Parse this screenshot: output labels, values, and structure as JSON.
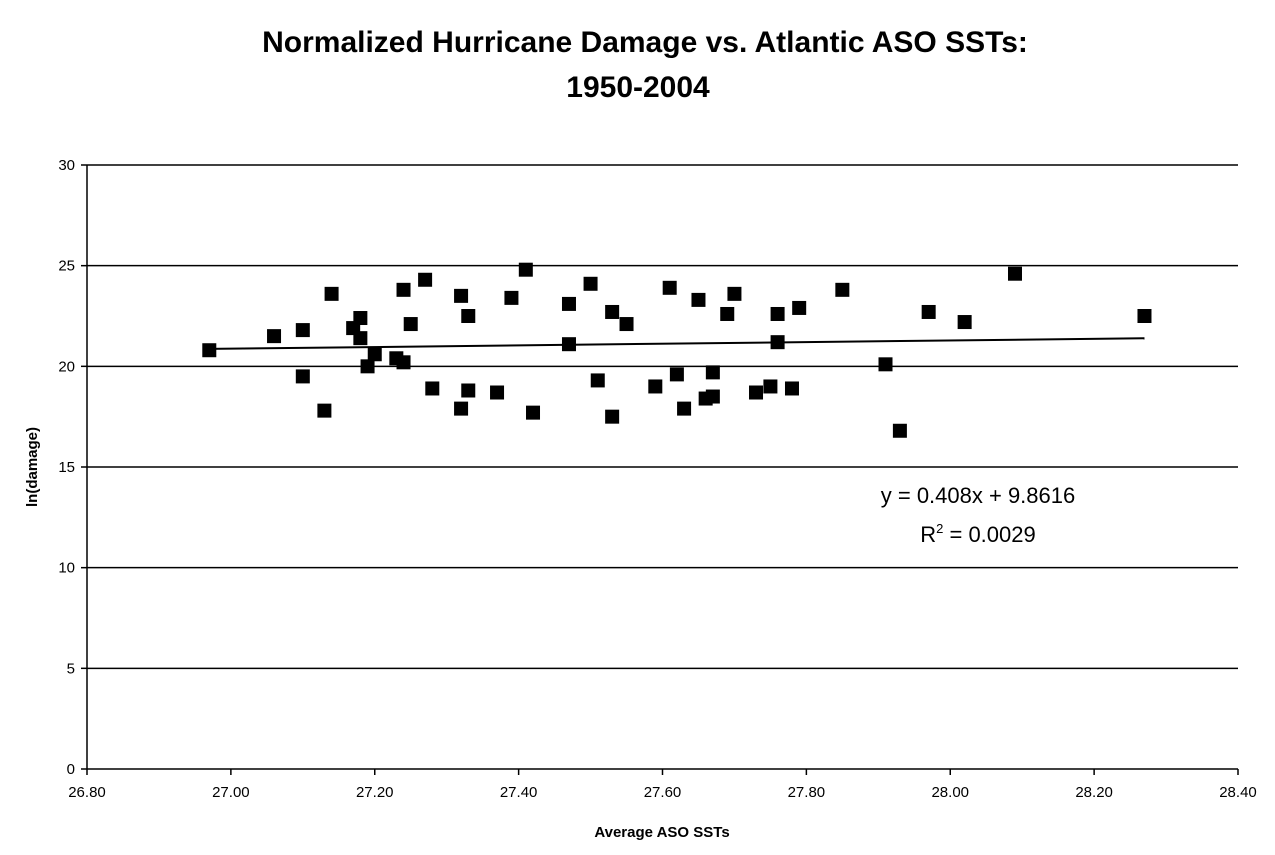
{
  "chart_data": {
    "type": "scatter",
    "title": "Normalized Hurricane Damage vs. Atlantic ASO SSTs:",
    "subtitle": "1950-2004",
    "xlabel": "Average ASO SSTs",
    "ylabel": "ln(damage)",
    "xlim": [
      26.8,
      28.4
    ],
    "ylim": [
      0,
      30
    ],
    "x_ticks": [
      "26.80",
      "27.00",
      "27.20",
      "27.40",
      "27.60",
      "27.80",
      "28.00",
      "28.20",
      "28.40"
    ],
    "y_ticks": [
      "0",
      "5",
      "10",
      "15",
      "20",
      "25",
      "30"
    ],
    "grid": "horizontal",
    "series": [
      {
        "marker": "square",
        "color": "#000000",
        "points": [
          [
            26.97,
            20.8
          ],
          [
            27.06,
            21.5
          ],
          [
            27.1,
            21.8
          ],
          [
            27.1,
            19.5
          ],
          [
            27.13,
            17.8
          ],
          [
            27.14,
            23.6
          ],
          [
            27.17,
            21.9
          ],
          [
            27.18,
            21.4
          ],
          [
            27.18,
            22.4
          ],
          [
            27.19,
            20.0
          ],
          [
            27.2,
            20.6
          ],
          [
            27.23,
            20.4
          ],
          [
            27.24,
            20.2
          ],
          [
            27.24,
            23.8
          ],
          [
            27.25,
            22.1
          ],
          [
            27.27,
            24.3
          ],
          [
            27.28,
            18.9
          ],
          [
            27.32,
            23.5
          ],
          [
            27.32,
            17.9
          ],
          [
            27.33,
            18.8
          ],
          [
            27.33,
            22.5
          ],
          [
            27.37,
            18.7
          ],
          [
            27.39,
            23.4
          ],
          [
            27.41,
            24.8
          ],
          [
            27.42,
            17.7
          ],
          [
            27.47,
            23.1
          ],
          [
            27.47,
            21.1
          ],
          [
            27.5,
            24.1
          ],
          [
            27.51,
            19.3
          ],
          [
            27.53,
            22.7
          ],
          [
            27.53,
            17.5
          ],
          [
            27.55,
            22.1
          ],
          [
            27.59,
            19.0
          ],
          [
            27.61,
            23.9
          ],
          [
            27.62,
            19.6
          ],
          [
            27.63,
            17.9
          ],
          [
            27.65,
            23.3
          ],
          [
            27.66,
            18.4
          ],
          [
            27.67,
            19.7
          ],
          [
            27.67,
            18.5
          ],
          [
            27.69,
            22.6
          ],
          [
            27.7,
            23.6
          ],
          [
            27.73,
            18.7
          ],
          [
            27.75,
            19.0
          ],
          [
            27.76,
            21.2
          ],
          [
            27.76,
            22.6
          ],
          [
            27.78,
            18.9
          ],
          [
            27.79,
            22.9
          ],
          [
            27.85,
            23.8
          ],
          [
            27.91,
            20.1
          ],
          [
            27.93,
            16.8
          ],
          [
            27.97,
            22.7
          ],
          [
            28.02,
            22.2
          ],
          [
            28.09,
            24.6
          ],
          [
            28.27,
            22.5
          ]
        ]
      }
    ],
    "trendline": {
      "type": "linear",
      "slope": 0.408,
      "intercept": 9.8616,
      "x_range": [
        26.97,
        28.27
      ],
      "equation": "y = 0.408x + 9.8616",
      "r2_label": "R",
      "r2_superscript": "2",
      "r2_value": " = 0.0029"
    }
  }
}
